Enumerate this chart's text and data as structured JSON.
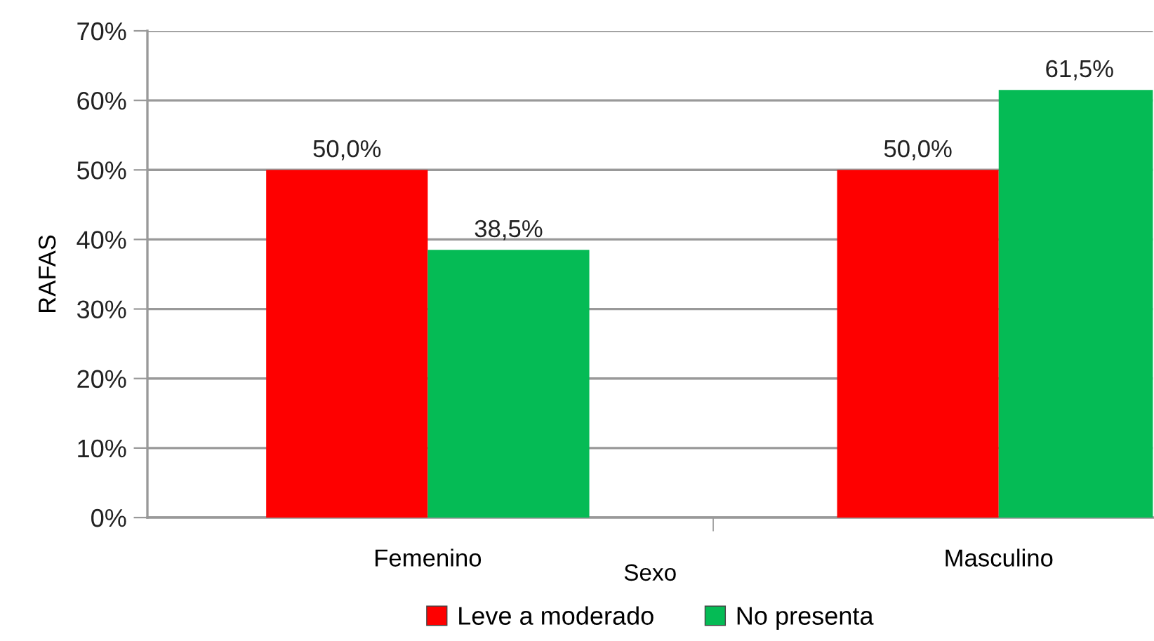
{
  "chart_data": {
    "type": "bar",
    "xlabel": "Sexo",
    "ylabel": "RAFAS",
    "categories": [
      "Femenino",
      "Masculino"
    ],
    "series": [
      {
        "name": "Leve a moderado",
        "color": "#fe0000",
        "values": [
          50.0,
          50.0
        ],
        "value_labels": [
          "50,0%",
          "50,0%"
        ]
      },
      {
        "name": "No presenta",
        "color": "#05bb55",
        "values": [
          38.5,
          61.5
        ],
        "value_labels": [
          "38,5%",
          "61,5%"
        ]
      }
    ],
    "ylim": [
      0,
      70
    ],
    "yticks": [
      {
        "value": 0,
        "label": "0%"
      },
      {
        "value": 10,
        "label": "10%"
      },
      {
        "value": 20,
        "label": "20%"
      },
      {
        "value": 30,
        "label": "30%"
      },
      {
        "value": 40,
        "label": "40%"
      },
      {
        "value": 50,
        "label": "50%"
      },
      {
        "value": 60,
        "label": "60%"
      },
      {
        "value": 70,
        "label": "70%"
      }
    ],
    "grid": "y",
    "legend": "bottom"
  }
}
